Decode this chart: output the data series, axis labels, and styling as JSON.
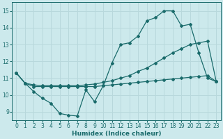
{
  "xlabel": "Humidex (Indice chaleur)",
  "bg_color": "#cce9ec",
  "grid_color": "#b8d8dc",
  "line_color": "#1a6b6b",
  "xlim": [
    -0.5,
    23.5
  ],
  "ylim": [
    8.5,
    15.5
  ],
  "xticks": [
    0,
    1,
    2,
    3,
    4,
    5,
    6,
    7,
    8,
    9,
    10,
    11,
    12,
    13,
    14,
    15,
    16,
    17,
    18,
    19,
    20,
    21,
    22,
    23
  ],
  "yticks": [
    9,
    10,
    11,
    12,
    13,
    14,
    15
  ],
  "line1_x": [
    0,
    1,
    2,
    3,
    4,
    5,
    6,
    7,
    8,
    9,
    10,
    11,
    12,
    13,
    14,
    15,
    16,
    17,
    18,
    19,
    20,
    21,
    22,
    23
  ],
  "line1_y": [
    11.3,
    10.7,
    10.2,
    9.8,
    9.5,
    8.9,
    8.8,
    8.75,
    10.3,
    9.6,
    10.55,
    11.9,
    13.0,
    13.1,
    13.5,
    14.4,
    14.6,
    15.0,
    15.0,
    14.1,
    14.2,
    12.5,
    11.0,
    10.8
  ],
  "line2_x": [
    0,
    1,
    2,
    3,
    4,
    5,
    6,
    7,
    8,
    9,
    10,
    11,
    12,
    13,
    14,
    15,
    16,
    17,
    18,
    19,
    20,
    21,
    22,
    23
  ],
  "line2_y": [
    11.3,
    10.7,
    10.6,
    10.55,
    10.55,
    10.55,
    10.55,
    10.55,
    10.6,
    10.65,
    10.75,
    10.85,
    11.0,
    11.15,
    11.4,
    11.6,
    11.9,
    12.2,
    12.5,
    12.75,
    13.0,
    13.1,
    13.2,
    10.8
  ],
  "line3_x": [
    0,
    1,
    2,
    3,
    4,
    5,
    6,
    7,
    8,
    9,
    10,
    11,
    12,
    13,
    14,
    15,
    16,
    17,
    18,
    19,
    20,
    21,
    22,
    23
  ],
  "line3_y": [
    11.3,
    10.7,
    10.5,
    10.5,
    10.5,
    10.5,
    10.5,
    10.5,
    10.5,
    10.5,
    10.55,
    10.6,
    10.65,
    10.7,
    10.75,
    10.8,
    10.85,
    10.9,
    10.95,
    11.0,
    11.05,
    11.1,
    11.15,
    10.8
  ]
}
